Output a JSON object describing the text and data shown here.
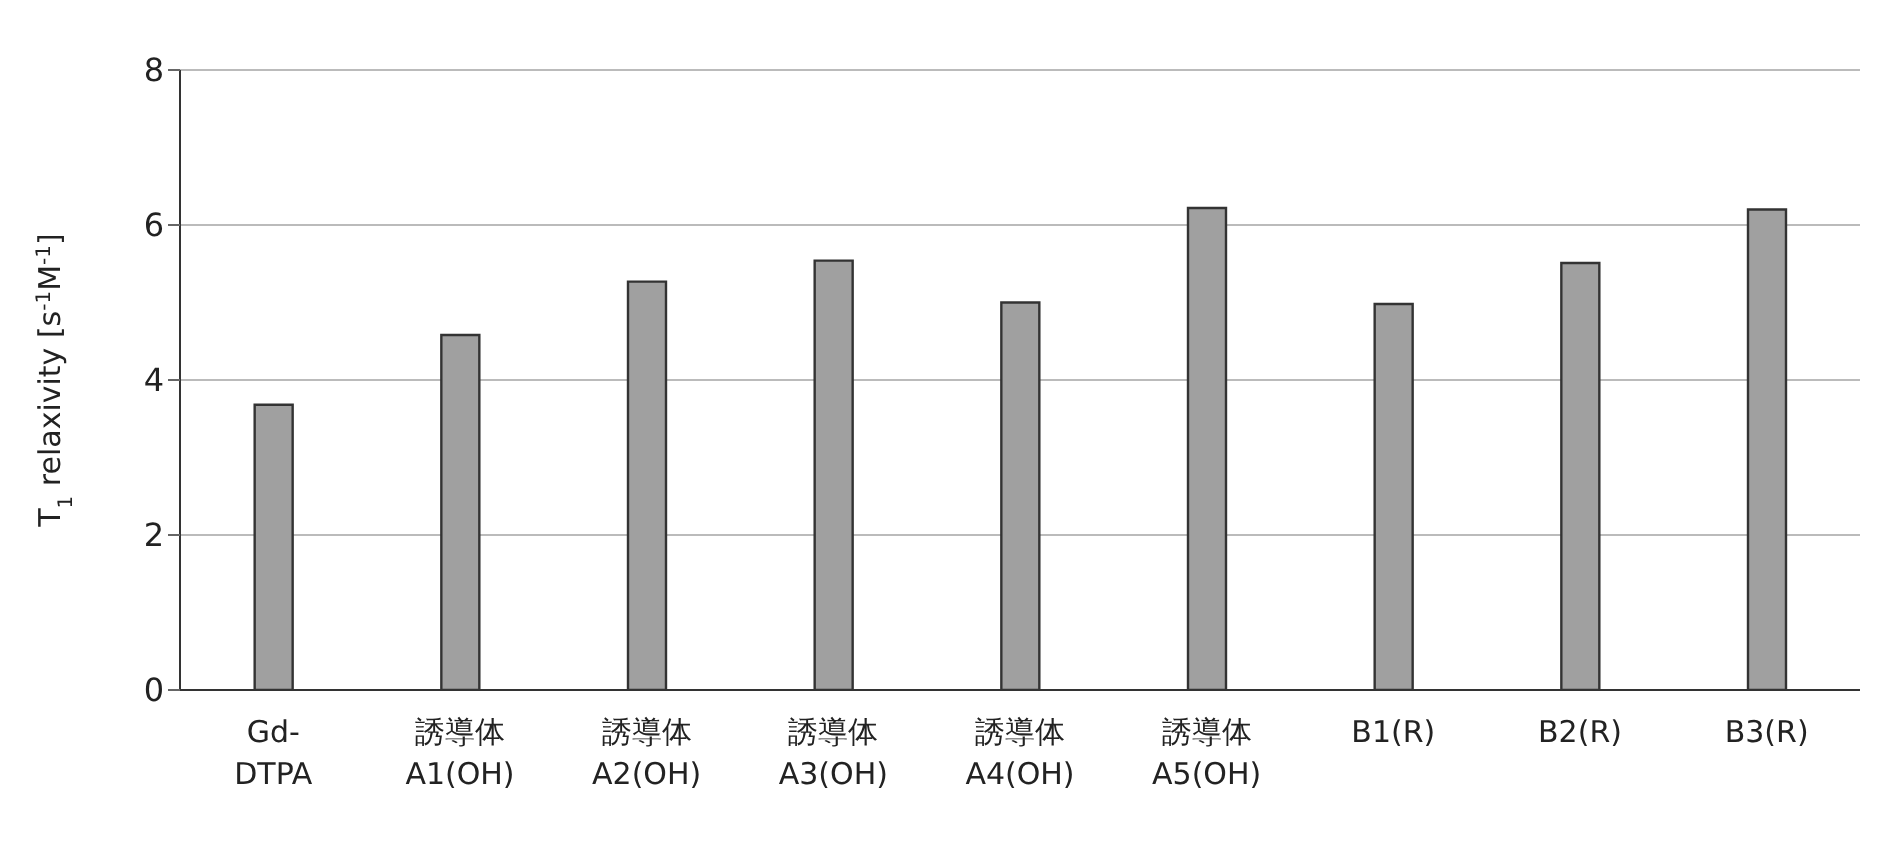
{
  "chart_data": {
    "type": "bar",
    "ylabel": "T$_{1}$ relaxivity [s$^{-1}$M$^{-1}$]",
    "categories": [
      "Gd-DTPA",
      "誘導体 A1(OH)",
      "誘導体 A2(OH)",
      "誘導体 A3(OH)",
      "誘導体 A4(OH)",
      "誘導体 A5(OH)",
      "B1(R)",
      "B2(R)",
      "B3(R)"
    ],
    "values": [
      3.68,
      4.58,
      5.27,
      5.54,
      5.0,
      6.22,
      4.98,
      5.51,
      6.2
    ],
    "color": "#a0a0a0",
    "ylim": [
      0,
      8
    ],
    "yticks": [
      0,
      2,
      4,
      6,
      8
    ],
    "grid": "y"
  }
}
